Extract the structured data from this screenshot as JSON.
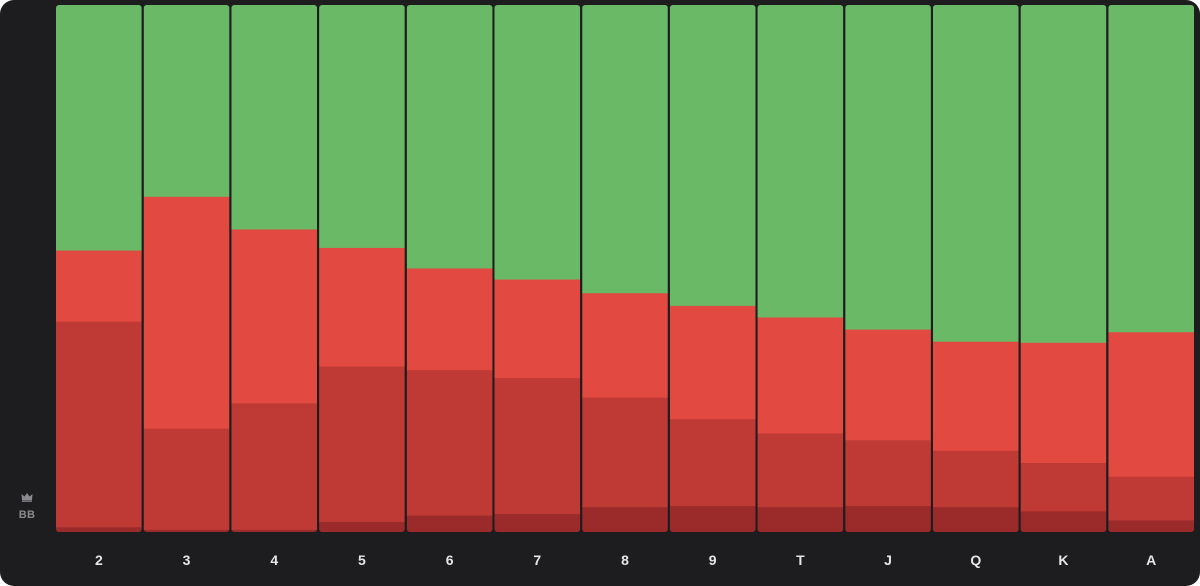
{
  "side_label": {
    "icon": "crown-icon",
    "text": "BB"
  },
  "chart_data": {
    "type": "bar",
    "stacked": true,
    "normalized": true,
    "categories": [
      "2",
      "3",
      "4",
      "5",
      "6",
      "7",
      "8",
      "9",
      "T",
      "J",
      "Q",
      "K",
      "A"
    ],
    "ylim": [
      0,
      100
    ],
    "grid": false,
    "legend": "none",
    "series": [
      {
        "color": "#9b2b2b",
        "values": [
          1.0,
          0.5,
          0.5,
          2.0,
          3.2,
          3.5,
          4.8,
          5.0,
          4.8,
          5.0,
          4.8,
          4.0,
          2.3
        ]
      },
      {
        "color": "#bf3a35",
        "values": [
          39.0,
          19.2,
          24.0,
          29.5,
          27.6,
          25.8,
          20.8,
          16.5,
          14.0,
          12.5,
          10.7,
          9.2,
          8.3
        ]
      },
      {
        "color": "#e24a41",
        "values": [
          13.5,
          44.0,
          33.0,
          22.5,
          19.3,
          18.7,
          19.8,
          21.5,
          22.0,
          21.0,
          20.7,
          22.8,
          27.4
        ]
      },
      {
        "color": "#69b967",
        "values": [
          46.5,
          36.3,
          42.5,
          46.0,
          49.9,
          52.0,
          54.6,
          57.0,
          59.2,
          61.5,
          63.8,
          64.0,
          62.0
        ]
      }
    ]
  }
}
